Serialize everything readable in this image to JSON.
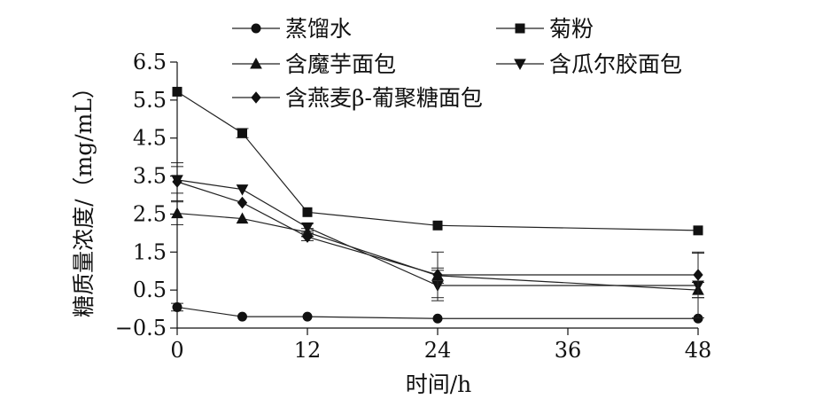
{
  "chart_data": {
    "type": "line",
    "xlabel": "时间/h",
    "ylabel": "糖质量浓度/（mg/mL）",
    "x_ticks": [
      0,
      12,
      24,
      36,
      48
    ],
    "y_ticks": [
      "−0.5",
      "0.5",
      "1.5",
      "2.5",
      "3.5",
      "4.5",
      "5.5",
      "6.5"
    ],
    "xlim": [
      0,
      48
    ],
    "ylim": [
      -0.5,
      6.5
    ],
    "legend_position": "top",
    "series": [
      {
        "name": "蒸馏水",
        "marker": "circle",
        "x": [
          0,
          6,
          12,
          24,
          48
        ],
        "y": [
          0.05,
          -0.2,
          -0.2,
          -0.25,
          -0.25
        ],
        "err": [
          0.1,
          0.05,
          0.05,
          0.05,
          0.05
        ]
      },
      {
        "name": "菊粉",
        "marker": "square",
        "x": [
          0,
          6,
          12,
          24,
          48
        ],
        "y": [
          5.72,
          4.63,
          2.55,
          2.2,
          2.07
        ],
        "err": [
          0.05,
          0.12,
          0.05,
          0.05,
          0.05
        ]
      },
      {
        "name": "含魔芋面包",
        "marker": "triangle-up",
        "x": [
          0,
          6,
          12,
          24,
          48
        ],
        "y": [
          2.52,
          2.38,
          2.02,
          0.88,
          0.5
        ],
        "err": [
          0.3,
          0.05,
          0.1,
          0.2,
          0.2
        ]
      },
      {
        "name": "含瓜尔胶面包",
        "marker": "triangle-down",
        "x": [
          0,
          6,
          12,
          24,
          48
        ],
        "y": [
          3.4,
          3.15,
          2.15,
          0.62,
          0.62
        ],
        "err": [
          0.35,
          0.05,
          0.1,
          0.4,
          0.85
        ]
      },
      {
        "name": "含燕麦β-葡聚糖面包",
        "marker": "diamond",
        "x": [
          0,
          6,
          12,
          24,
          48
        ],
        "y": [
          3.35,
          2.8,
          1.9,
          0.9,
          0.9
        ],
        "err": [
          0.5,
          0.05,
          0.1,
          0.6,
          0.6
        ]
      }
    ]
  }
}
